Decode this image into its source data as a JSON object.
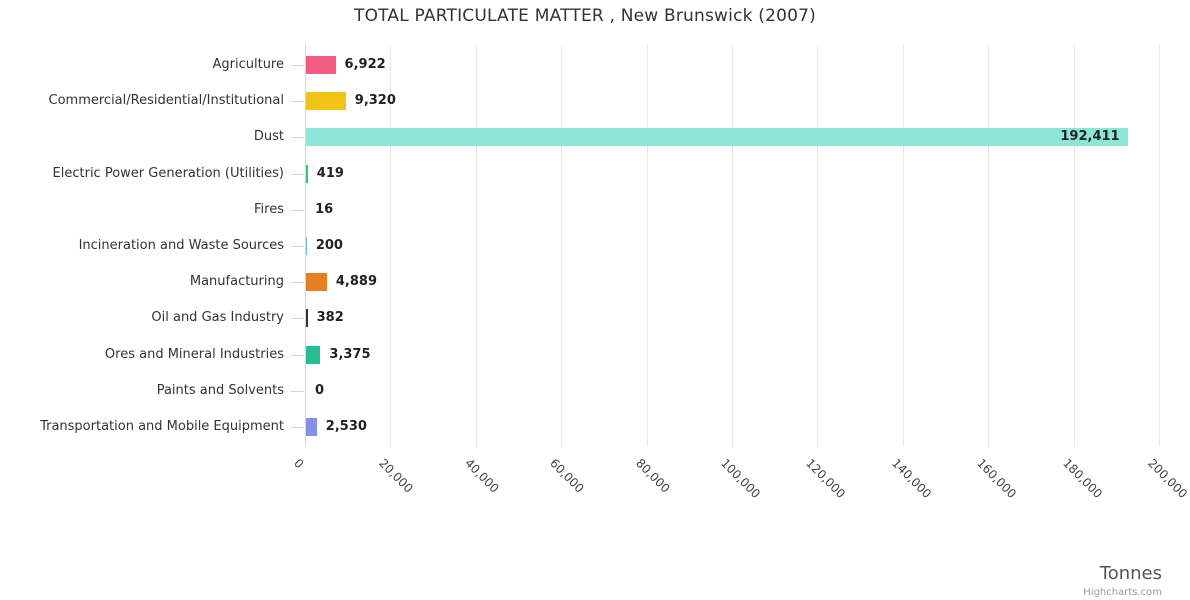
{
  "chart_data": {
    "type": "bar",
    "orientation": "horizontal",
    "title": "TOTAL PARTICULATE MATTER , New Brunswick (2007)",
    "xlabel": "Tonnes",
    "credit": "Highcharts.com",
    "xlim": [
      0,
      200000
    ],
    "grid": true,
    "legend": "none",
    "categories": [
      "Agriculture",
      "Commercial/Residential/Institutional",
      "Dust",
      "Electric Power Generation (Utilities)",
      "Fires",
      "Incineration and Waste Sources",
      "Manufacturing",
      "Oil and Gas Industry",
      "Ores and Mineral Industries",
      "Paints and Solvents",
      "Transportation and Mobile Equipment"
    ],
    "values": [
      6922,
      9320,
      192411,
      419,
      16,
      200,
      4889,
      382,
      3375,
      0,
      2530
    ],
    "value_labels": [
      "6,922",
      "9,320",
      "192,411",
      "419",
      "16",
      "200",
      "4,889",
      "382",
      "3,375",
      "0",
      "2,530"
    ],
    "bar_colors": [
      "#f15c80",
      "#f0c314",
      "#8ee6d8",
      "#2ecc71",
      "#7cb5ec",
      "#7cb5ec",
      "#e67f21",
      "#32323c",
      "#26bd92",
      "#999999",
      "#8690ea"
    ],
    "x_ticks": [
      "0",
      "20,000",
      "40,000",
      "60,000",
      "80,000",
      "100,000",
      "120,000",
      "140,000",
      "160,000",
      "180,000",
      "200,000"
    ]
  },
  "colors": {
    "grid": "#e6e6e6",
    "axis_line": "#ccd6eb",
    "title_text": "#333333",
    "category_text": "#333333",
    "value_text": "#222222",
    "tick_text": "#444444",
    "axis_title_text": "#555555",
    "credit_text": "#999999"
  }
}
